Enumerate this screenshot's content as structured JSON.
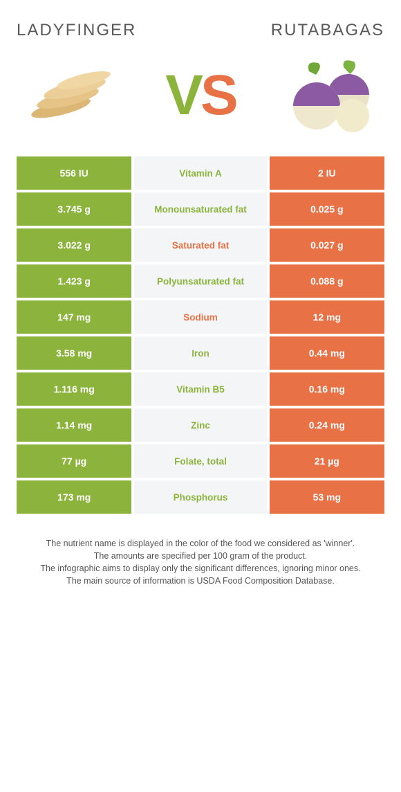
{
  "colors": {
    "left": "#8cb43c",
    "right": "#e87146",
    "mid_bg": "#f3f5f6",
    "mid_text_winner_left": "#8cb43c",
    "mid_text_winner_right": "#e87146"
  },
  "titles": {
    "left": "Ladyfinger",
    "right": "Rutabagas"
  },
  "vs": {
    "v": "V",
    "s": "S"
  },
  "rows": [
    {
      "left": "556 IU",
      "label": "Vitamin A",
      "right": "2 IU",
      "winner": "left"
    },
    {
      "left": "3.745 g",
      "label": "Monounsaturated fat",
      "right": "0.025 g",
      "winner": "left"
    },
    {
      "left": "3.022 g",
      "label": "Saturated fat",
      "right": "0.027 g",
      "winner": "right"
    },
    {
      "left": "1.423 g",
      "label": "Polyunsaturated fat",
      "right": "0.088 g",
      "winner": "left"
    },
    {
      "left": "147 mg",
      "label": "Sodium",
      "right": "12 mg",
      "winner": "right"
    },
    {
      "left": "3.58 mg",
      "label": "Iron",
      "right": "0.44 mg",
      "winner": "left"
    },
    {
      "left": "1.116 mg",
      "label": "Vitamin B5",
      "right": "0.16 mg",
      "winner": "left"
    },
    {
      "left": "1.14 mg",
      "label": "Zinc",
      "right": "0.24 mg",
      "winner": "left"
    },
    {
      "left": "77 µg",
      "label": "Folate, total",
      "right": "21 µg",
      "winner": "left"
    },
    {
      "left": "173 mg",
      "label": "Phosphorus",
      "right": "53 mg",
      "winner": "left"
    }
  ],
  "footer": {
    "l1": "The nutrient name is displayed in the color of the food we considered as 'winner'.",
    "l2": "The amounts are specified per 100 gram of the product.",
    "l3": "The infographic aims to display only the significant differences, ignoring minor ones.",
    "l4": "The main source of information is USDA Food Composition Database."
  }
}
